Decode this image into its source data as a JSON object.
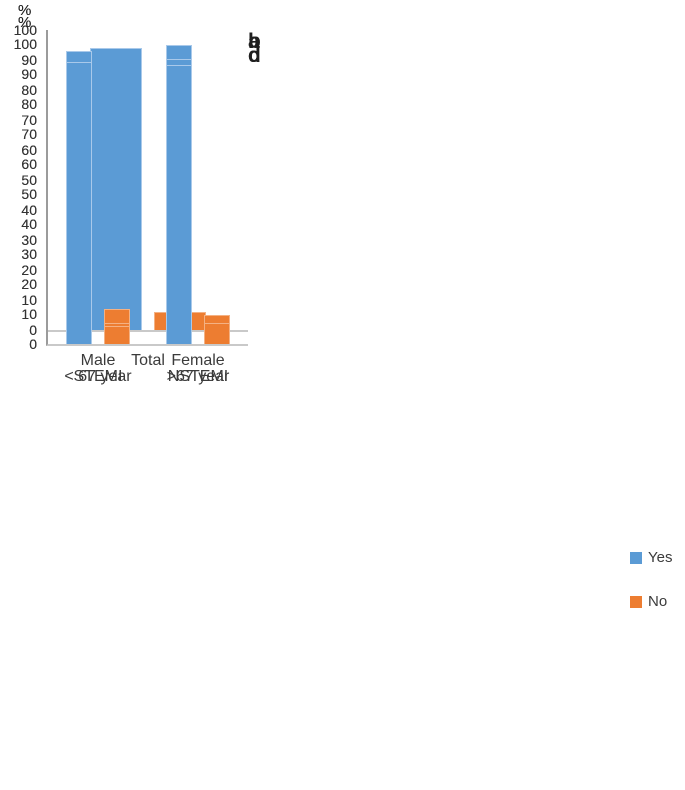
{
  "figure": {
    "axis": {
      "ticks": [
        100,
        90,
        80,
        70,
        60,
        50,
        40,
        30,
        20,
        10,
        0
      ],
      "unit_label": "%",
      "min": 0,
      "max": 100
    },
    "legend": {
      "items": [
        {
          "label": "Yes",
          "color": "#5b9bd5",
          "border": "#a9c9ea"
        },
        {
          "label": "No",
          "color": "#ed7d31",
          "border": "#f4b183"
        }
      ]
    }
  },
  "chart_data": [
    {
      "type": "bar",
      "panel_label": "a",
      "categories": [
        "Total"
      ],
      "series": [
        {
          "name": "Yes",
          "values": [
            94
          ]
        },
        {
          "name": "No",
          "values": [
            6
          ]
        }
      ],
      "ylabel": "%",
      "ylim": [
        0,
        100
      ],
      "grid": false,
      "legend_position": "right-of-figure"
    },
    {
      "type": "bar",
      "panel_label": "b",
      "categories": [
        "Male",
        "Female"
      ],
      "series": [
        {
          "name": "Yes",
          "values": [
            93,
            95
          ]
        },
        {
          "name": "No",
          "values": [
            7,
            5
          ]
        }
      ],
      "ylabel": "%",
      "ylim": [
        0,
        100
      ],
      "grid": false,
      "legend_position": "right-of-figure"
    },
    {
      "type": "bar",
      "panel_label": "c",
      "categories": [
        "STEMI",
        "NSTEMI"
      ],
      "series": [
        {
          "name": "Yes",
          "values": [
            93,
            95
          ]
        },
        {
          "name": "No",
          "values": [
            7,
            5
          ]
        }
      ],
      "ylabel": "%",
      "ylim": [
        0,
        100
      ],
      "grid": false,
      "legend_position": "right-of-figure"
    },
    {
      "type": "bar",
      "panel_label": "d",
      "categories": [
        "< 67 year",
        ">67 year"
      ],
      "series": [
        {
          "name": "Yes",
          "values": [
            94,
            93
          ]
        },
        {
          "name": "No",
          "values": [
            6,
            7
          ]
        }
      ],
      "ylabel": "%",
      "ylim": [
        0,
        100
      ],
      "grid": false,
      "legend_position": "right-of-figure"
    }
  ]
}
